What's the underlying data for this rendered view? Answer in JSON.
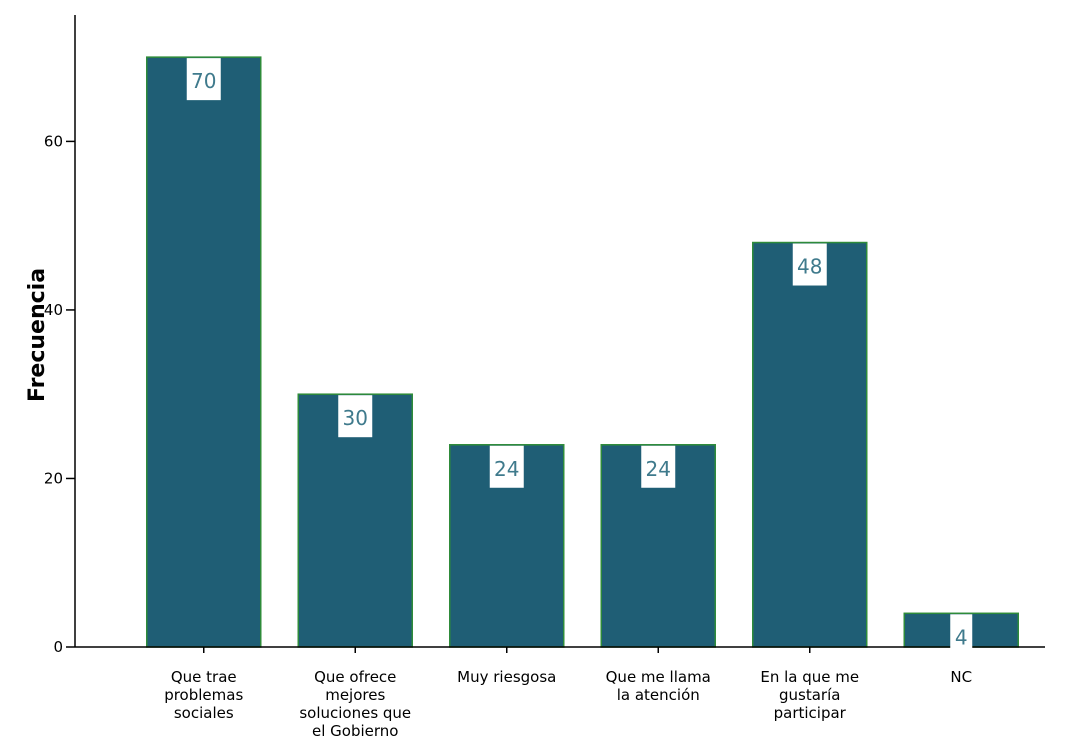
{
  "chart_data": {
    "type": "bar",
    "title": "",
    "xlabel": "",
    "ylabel": "Frecuencia",
    "categories": [
      "Que trae problemas sociales",
      "Que ofrece mejores soluciones que el Gobierno",
      "Muy riesgosa",
      "Que me llama la atención",
      "En la que me gustaría participar",
      "NC"
    ],
    "category_lines": [
      [
        "Que trae",
        "problemas",
        "sociales"
      ],
      [
        "Que ofrece",
        "mejores",
        "soluciones que",
        "el Gobierno"
      ],
      [
        "Muy riesgosa"
      ],
      [
        "Que me llama",
        "la atención"
      ],
      [
        "En la que me",
        "gustaría",
        "participar"
      ],
      [
        "NC"
      ]
    ],
    "values": [
      70,
      30,
      24,
      24,
      48,
      4
    ],
    "data_labels": [
      "70",
      "30",
      "24",
      "24",
      "48",
      "4"
    ],
    "ylim": [
      0,
      75
    ],
    "yticks": [
      0,
      20,
      40,
      60
    ],
    "ytick_labels": [
      "0",
      "20",
      "40",
      "60"
    ],
    "grid": false,
    "legend": "none",
    "colors": {
      "bar_fill": "#1f5e75",
      "bar_edge": "#2e8b3a",
      "label_text": "#3f7a8c",
      "axis": "#000000"
    }
  }
}
